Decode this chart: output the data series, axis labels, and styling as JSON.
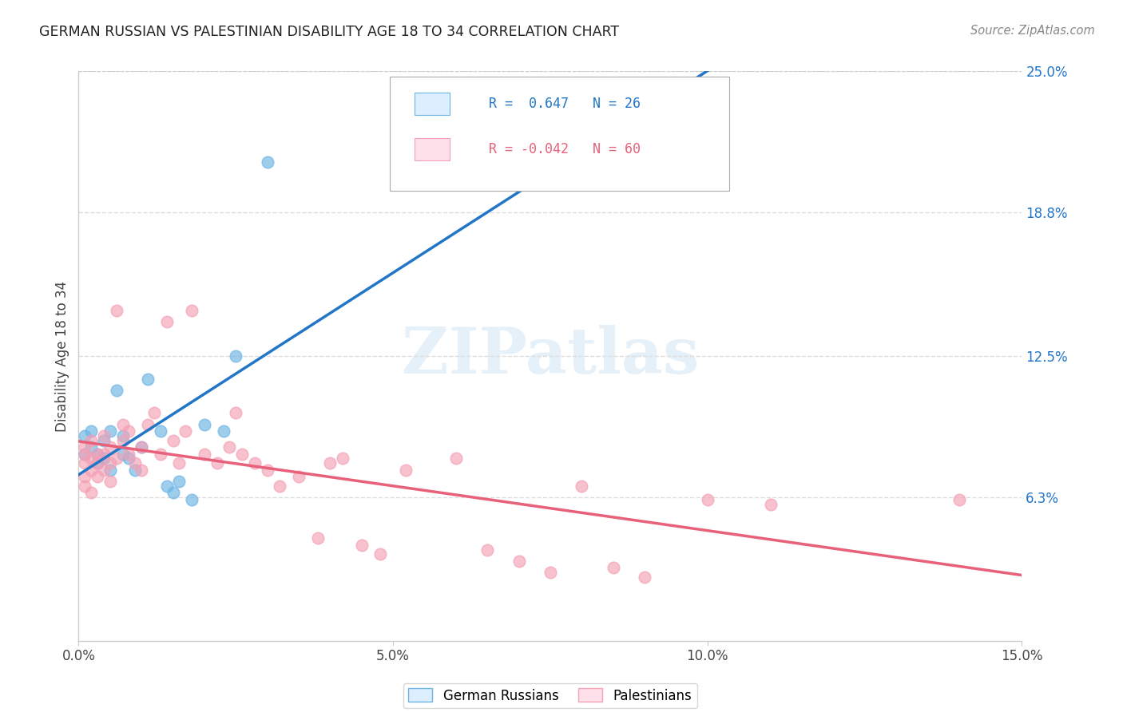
{
  "title": "GERMAN RUSSIAN VS PALESTINIAN DISABILITY AGE 18 TO 34 CORRELATION CHART",
  "source_text": "Source: ZipAtlas.com",
  "ylabel": "Disability Age 18 to 34",
  "xmin": 0.0,
  "xmax": 0.15,
  "ymin": -0.02,
  "ymax": 0.27,
  "yplot_min": 0.0,
  "yplot_max": 0.25,
  "yticks": [
    0.063,
    0.125,
    0.188,
    0.25
  ],
  "ytick_labels": [
    "6.3%",
    "12.5%",
    "18.8%",
    "25.0%"
  ],
  "xticks": [
    0.0,
    0.05,
    0.1,
    0.15
  ],
  "xtick_labels": [
    "0.0%",
    "5.0%",
    "10.0%",
    "15.0%"
  ],
  "german_russian_R": 0.647,
  "german_russian_N": 26,
  "palestinian_R": -0.042,
  "palestinian_N": 60,
  "german_russian_color": "#6cb4e4",
  "palestinian_color": "#f4a0b5",
  "regression_blue_color": "#2176c7",
  "regression_pink_color": "#e8607a",
  "watermark_color": "#d0e4f4",
  "watermark_text": "ZIPatlas",
  "legend_label_gr": "German Russians",
  "legend_label_pal": "Palestinians",
  "german_russian_x": [
    0.001,
    0.001,
    0.002,
    0.002,
    0.003,
    0.003,
    0.004,
    0.004,
    0.005,
    0.005,
    0.006,
    0.007,
    0.007,
    0.008,
    0.009,
    0.01,
    0.011,
    0.013,
    0.014,
    0.015,
    0.016,
    0.018,
    0.02,
    0.023,
    0.025,
    0.03
  ],
  "german_russian_y": [
    0.082,
    0.09,
    0.085,
    0.092,
    0.078,
    0.082,
    0.088,
    0.08,
    0.075,
    0.092,
    0.11,
    0.082,
    0.09,
    0.08,
    0.075,
    0.085,
    0.115,
    0.092,
    0.068,
    0.065,
    0.07,
    0.062,
    0.095,
    0.092,
    0.125,
    0.21
  ],
  "palestinian_x": [
    0.001,
    0.001,
    0.001,
    0.001,
    0.001,
    0.002,
    0.002,
    0.002,
    0.002,
    0.003,
    0.003,
    0.003,
    0.004,
    0.004,
    0.004,
    0.005,
    0.005,
    0.005,
    0.006,
    0.006,
    0.007,
    0.007,
    0.008,
    0.008,
    0.009,
    0.01,
    0.01,
    0.011,
    0.012,
    0.013,
    0.014,
    0.015,
    0.016,
    0.017,
    0.018,
    0.02,
    0.022,
    0.024,
    0.025,
    0.026,
    0.028,
    0.03,
    0.032,
    0.035,
    0.038,
    0.04,
    0.042,
    0.045,
    0.048,
    0.052,
    0.06,
    0.065,
    0.07,
    0.075,
    0.08,
    0.085,
    0.09,
    0.1,
    0.11,
    0.14
  ],
  "palestinian_y": [
    0.078,
    0.082,
    0.085,
    0.072,
    0.068,
    0.08,
    0.075,
    0.088,
    0.065,
    0.082,
    0.078,
    0.072,
    0.09,
    0.082,
    0.075,
    0.085,
    0.078,
    0.07,
    0.08,
    0.145,
    0.088,
    0.095,
    0.092,
    0.082,
    0.078,
    0.085,
    0.075,
    0.095,
    0.1,
    0.082,
    0.14,
    0.088,
    0.078,
    0.092,
    0.145,
    0.082,
    0.078,
    0.085,
    0.1,
    0.082,
    0.078,
    0.075,
    0.068,
    0.072,
    0.045,
    0.078,
    0.08,
    0.042,
    0.038,
    0.075,
    0.08,
    0.04,
    0.035,
    0.03,
    0.068,
    0.032,
    0.028,
    0.062,
    0.06,
    0.062
  ]
}
